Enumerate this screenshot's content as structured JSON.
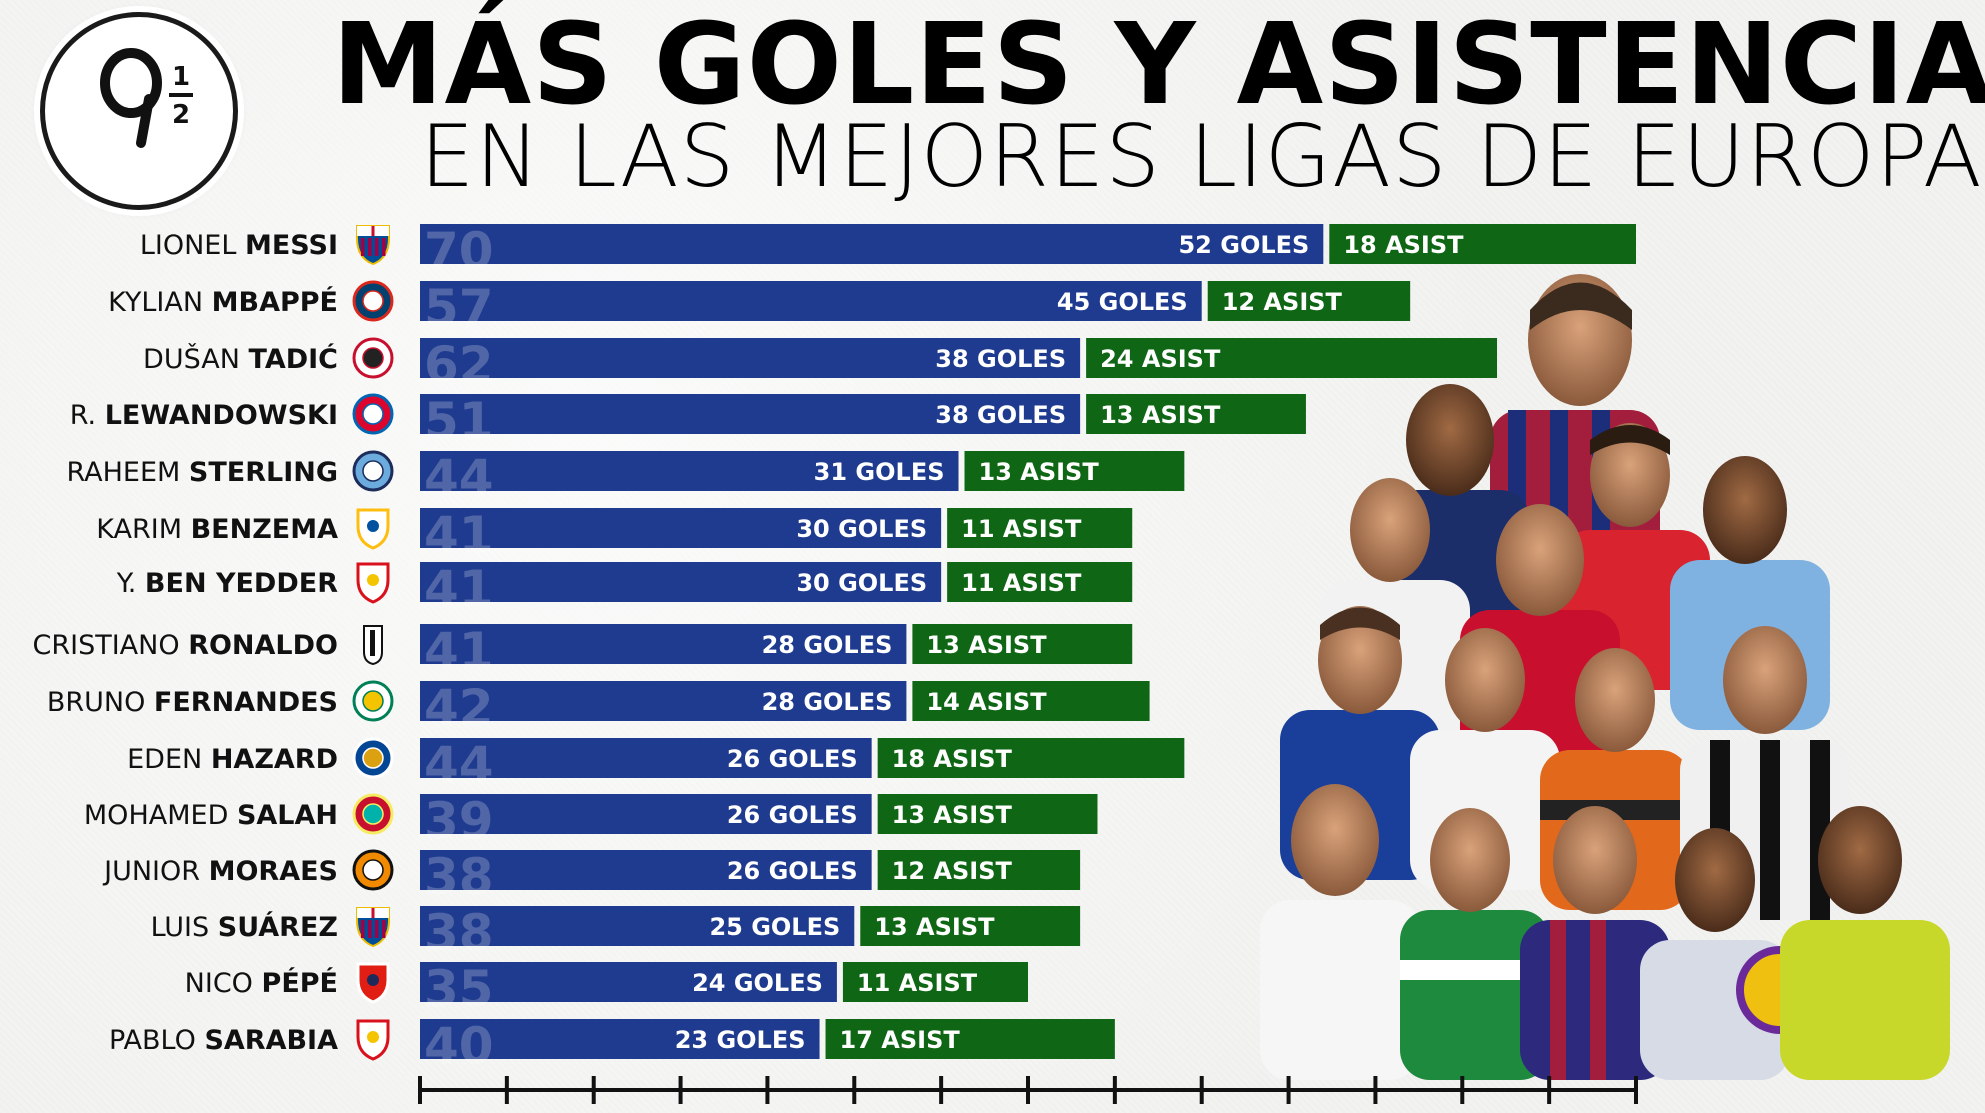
{
  "header": {
    "logo_text": "9 1/2",
    "title": "MÁS GOLES Y ASISTENCIAS",
    "subtitle": "EN LAS MEJORES LIGAS DE EUROPA"
  },
  "colors": {
    "goals": "#1f3b8f",
    "assists": "#0f6614",
    "text": "#111111"
  },
  "chart_data": {
    "type": "bar",
    "orientation": "horizontal",
    "stacked": true,
    "categories": [
      {
        "first": "LIONEL",
        "last": "MESSI",
        "club_icon": "fc-barcelona-crest-icon",
        "total": 70
      },
      {
        "first": "KYLIAN",
        "last": "MBAPPÉ",
        "club_icon": "psg-crest-icon",
        "total": 57
      },
      {
        "first": "DUŠAN",
        "last": "TADIĆ",
        "club_icon": "ajax-crest-icon",
        "total": 62
      },
      {
        "first": "R.",
        "last": "LEWANDOWSKI",
        "club_icon": "bayern-crest-icon",
        "total": 51
      },
      {
        "first": "RAHEEM",
        "last": "STERLING",
        "club_icon": "man-city-crest-icon",
        "total": 44
      },
      {
        "first": "KARIM",
        "last": "BENZEMA",
        "club_icon": "real-madrid-crest-icon",
        "total": 41
      },
      {
        "first": "Y.",
        "last": "BEN YEDDER",
        "club_icon": "sevilla-crest-icon",
        "total": 41
      },
      {
        "first": "CRISTIANO",
        "last": "RONALDO",
        "club_icon": "juventus-crest-icon",
        "total": 41
      },
      {
        "first": "BRUNO",
        "last": "FERNANDES",
        "club_icon": "sporting-crest-icon",
        "total": 42
      },
      {
        "first": "EDEN",
        "last": "HAZARD",
        "club_icon": "chelsea-crest-icon",
        "total": 44
      },
      {
        "first": "MOHAMED",
        "last": "SALAH",
        "club_icon": "liverpool-crest-icon",
        "total": 39
      },
      {
        "first": "JUNIOR",
        "last": "MORAES",
        "club_icon": "shakhtar-crest-icon",
        "total": 38
      },
      {
        "first": "LUIS",
        "last": "SUÁREZ",
        "club_icon": "fc-barcelona-crest-icon",
        "total": 38
      },
      {
        "first": "NICO",
        "last": "PÉPÉ",
        "club_icon": "lille-crest-icon",
        "total": 35
      },
      {
        "first": "PABLO",
        "last": "SARABIA",
        "club_icon": "sevilla-crest-icon",
        "total": 40
      }
    ],
    "series": [
      {
        "name": "GOLES",
        "values": [
          52,
          45,
          38,
          38,
          31,
          30,
          30,
          28,
          28,
          26,
          26,
          26,
          25,
          24,
          23
        ],
        "labels": [
          "52 GOLES",
          "45 GOLES",
          "38 GOLES",
          "38 GOLES",
          "31 GOLES",
          "30 GOLES",
          "30 GOLES",
          "28 GOLES",
          "28 GOLES",
          "26 GOLES",
          "26 GOLES",
          "26 GOLES",
          "25 GOLES",
          "24 GOLES",
          "23 GOLES"
        ]
      },
      {
        "name": "ASIST",
        "values": [
          18,
          12,
          24,
          13,
          13,
          11,
          11,
          13,
          14,
          18,
          13,
          12,
          13,
          11,
          17
        ],
        "labels": [
          "18 ASIST",
          "12 ASIST",
          "24 ASIST",
          "13 ASIST",
          "13 ASIST",
          "11 ASIST",
          "11 ASIST",
          "13 ASIST",
          "14 ASIST",
          "18 ASIST",
          "13 ASIST",
          "12 ASIST",
          "13 ASIST",
          "11 ASIST",
          "17 ASIST"
        ]
      }
    ],
    "xlim": [
      0,
      70
    ],
    "x_ticks": [
      0,
      5,
      10,
      15,
      20,
      25,
      30,
      35,
      40,
      45,
      50,
      55,
      60,
      65,
      70
    ],
    "tick_labels_shown": false,
    "grid": false,
    "legend": "none",
    "xlabel": "",
    "ylabel": ""
  }
}
